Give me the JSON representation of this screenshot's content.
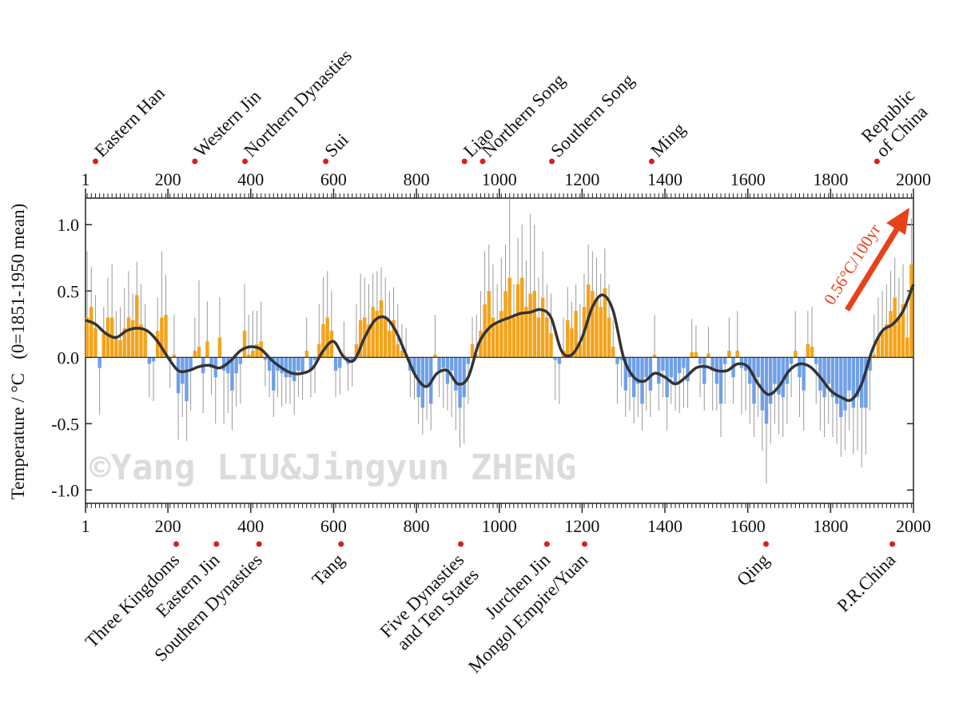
{
  "chart_data": {
    "type": "bar",
    "y_label": "Temperature / °C   (0=1851-1950 mean)",
    "watermark": "©Yang LIU&Jingyun ZHENG",
    "annotation": "0.56°C/100yr",
    "annotation_color": "#e8411a",
    "positive_color": "#f5a31a",
    "negative_color": "#6fa0e8",
    "error_color": "#999999",
    "line_color": "#333333",
    "grid": false,
    "xlim": [
      1,
      2000
    ],
    "xticks": [
      1,
      200,
      400,
      600,
      800,
      1000,
      1200,
      1400,
      1600,
      1800,
      2000
    ],
    "ylim": [
      -1.1,
      1.2
    ],
    "yticks": [
      {
        "value": 1,
        "label": "1.0"
      },
      {
        "value": 0.5,
        "label": "0.5"
      },
      {
        "value": 0,
        "label": "0.0"
      },
      {
        "value": -0.5,
        "label": "-0.5"
      },
      {
        "value": -1,
        "label": "-1.0"
      }
    ],
    "x": [
      5,
      15,
      25,
      35,
      45,
      55,
      65,
      75,
      85,
      95,
      105,
      115,
      125,
      135,
      145,
      155,
      165,
      175,
      185,
      195,
      205,
      215,
      225,
      235,
      245,
      255,
      265,
      275,
      285,
      295,
      305,
      315,
      325,
      335,
      345,
      355,
      365,
      375,
      385,
      395,
      405,
      415,
      425,
      435,
      445,
      455,
      465,
      475,
      485,
      495,
      505,
      515,
      525,
      535,
      545,
      555,
      565,
      575,
      585,
      595,
      605,
      615,
      625,
      635,
      645,
      655,
      665,
      675,
      685,
      695,
      705,
      715,
      725,
      735,
      745,
      755,
      765,
      775,
      785,
      795,
      805,
      815,
      825,
      835,
      845,
      855,
      865,
      875,
      885,
      895,
      905,
      915,
      925,
      935,
      945,
      955,
      965,
      975,
      985,
      995,
      1005,
      1015,
      1025,
      1035,
      1045,
      1055,
      1065,
      1075,
      1085,
      1095,
      1105,
      1115,
      1125,
      1135,
      1145,
      1155,
      1165,
      1175,
      1185,
      1195,
      1205,
      1215,
      1225,
      1235,
      1245,
      1255,
      1265,
      1275,
      1285,
      1295,
      1305,
      1315,
      1325,
      1335,
      1345,
      1355,
      1365,
      1375,
      1385,
      1395,
      1405,
      1415,
      1425,
      1435,
      1445,
      1455,
      1465,
      1475,
      1485,
      1495,
      1505,
      1515,
      1525,
      1535,
      1545,
      1555,
      1565,
      1575,
      1585,
      1595,
      1605,
      1615,
      1625,
      1635,
      1645,
      1655,
      1665,
      1675,
      1685,
      1695,
      1705,
      1715,
      1725,
      1735,
      1745,
      1755,
      1765,
      1775,
      1785,
      1795,
      1805,
      1815,
      1825,
      1835,
      1845,
      1855,
      1865,
      1875,
      1885,
      1895,
      1905,
      1915,
      1925,
      1935,
      1945,
      1955,
      1965,
      1975,
      1985,
      1995
    ],
    "values": [
      0.3,
      0.38,
      0.22,
      -0.08,
      0.18,
      0.3,
      0.3,
      0.15,
      0.13,
      0.22,
      0.3,
      0.28,
      0.47,
      0.25,
      0.2,
      -0.05,
      -0.03,
      0.2,
      0.3,
      0.32,
      -0.03,
      0.02,
      -0.27,
      -0.2,
      -0.33,
      -0.1,
      0.05,
      0.08,
      -0.12,
      0.12,
      -0.08,
      -0.15,
      0.15,
      -0.1,
      -0.12,
      -0.25,
      -0.12,
      -0.05,
      0.2,
      0.02,
      0.05,
      0.1,
      0.12,
      -0.02,
      -0.1,
      -0.25,
      -0.1,
      -0.12,
      -0.15,
      -0.15,
      -0.18,
      -0.1,
      -0.12,
      0.05,
      -0.1,
      -0.02,
      0.1,
      0.25,
      0.3,
      0.2,
      -0.1,
      -0.08,
      0.02,
      -0.05,
      -0.02,
      0.1,
      0.28,
      0.3,
      0.25,
      0.38,
      0.35,
      0.43,
      0.3,
      0.2,
      0.28,
      0.1,
      0.05,
      0.02,
      -0.1,
      -0.12,
      -0.3,
      -0.38,
      -0.22,
      -0.35,
      0.02,
      -0.1,
      -0.08,
      -0.2,
      -0.1,
      -0.25,
      -0.38,
      -0.3,
      -0.05,
      0.1,
      0.02,
      0.2,
      0.4,
      0.5,
      0.3,
      0.25,
      0.35,
      0.5,
      0.6,
      0.3,
      0.55,
      0.6,
      0.38,
      0.48,
      0.5,
      0.3,
      0.45,
      0.3,
      0.18,
      -0.02,
      -0.05,
      0.05,
      0.28,
      0.22,
      0.35,
      0.1,
      0.38,
      0.55,
      0.5,
      0.45,
      0.38,
      0.52,
      0.3,
      0.08,
      -0.05,
      -0.02,
      -0.25,
      -0.15,
      -0.3,
      -0.2,
      -0.35,
      -0.15,
      -0.25,
      0.02,
      -0.2,
      -0.1,
      -0.3,
      -0.15,
      -0.2,
      -0.12,
      -0.08,
      -0.18,
      0.04,
      0.04,
      -0.05,
      -0.2,
      0.03,
      -0.1,
      -0.2,
      -0.35,
      -0.05,
      0.05,
      -0.15,
      0.05,
      -0.08,
      -0.1,
      -0.2,
      -0.35,
      -0.15,
      -0.4,
      -0.5,
      -0.35,
      -0.2,
      -0.28,
      -0.3,
      -0.2,
      -0.05,
      0.05,
      -0.15,
      -0.25,
      0.1,
      0.08,
      -0.05,
      -0.25,
      -0.3,
      -0.2,
      -0.3,
      -0.35,
      -0.45,
      -0.4,
      -0.25,
      -0.38,
      -0.3,
      -0.38,
      -0.38,
      -0.1,
      0.02,
      0.15,
      0.2,
      0.25,
      0.35,
      0.45,
      0.3,
      0.4,
      0.15,
      0.7
    ],
    "errors": [
      0.5,
      0.3,
      0.25,
      0.35,
      0.2,
      0.3,
      0.4,
      0.2,
      0.25,
      0.3,
      0.35,
      0.2,
      0.25,
      0.3,
      0.2,
      0.25,
      0.3,
      0.25,
      0.5,
      0.3,
      0.2,
      0.3,
      0.35,
      0.25,
      0.3,
      0.3,
      0.25,
      0.5,
      0.3,
      0.3,
      0.2,
      0.35,
      0.3,
      0.4,
      0.3,
      0.3,
      0.25,
      0.3,
      0.35,
      0.3,
      0.3,
      0.25,
      0.3,
      0.2,
      0.2,
      0.2,
      0.2,
      0.25,
      0.2,
      0.2,
      0.25,
      0.2,
      0.2,
      0.25,
      0.2,
      0.25,
      0.3,
      0.35,
      0.35,
      0.3,
      0.2,
      0.2,
      0.25,
      0.2,
      0.2,
      0.3,
      0.35,
      0.3,
      0.3,
      0.25,
      0.3,
      0.25,
      0.3,
      0.3,
      0.25,
      0.3,
      0.2,
      0.2,
      0.2,
      0.2,
      0.2,
      0.2,
      0.25,
      0.2,
      0.3,
      0.2,
      0.3,
      0.2,
      0.35,
      0.3,
      0.3,
      0.35,
      0.3,
      0.2,
      0.3,
      0.3,
      0.4,
      0.35,
      0.4,
      0.3,
      0.4,
      0.35,
      0.6,
      0.25,
      0.35,
      0.4,
      0.35,
      0.6,
      0.5,
      0.3,
      0.35,
      0.25,
      0.3,
      0.3,
      0.3,
      0.25,
      0.25,
      0.2,
      0.2,
      0.3,
      0.25,
      0.3,
      0.3,
      0.3,
      0.25,
      0.3,
      0.25,
      0.2,
      0.3,
      0.2,
      0.2,
      0.25,
      0.2,
      0.25,
      0.2,
      0.25,
      0.2,
      0.3,
      0.2,
      0.2,
      0.25,
      0.2,
      0.2,
      0.3,
      0.3,
      0.2,
      0.25,
      0.2,
      0.25,
      0.2,
      0.2,
      0.3,
      0.2,
      0.25,
      0.3,
      0.25,
      0.2,
      0.3,
      0.35,
      0.3,
      0.3,
      0.25,
      0.3,
      0.3,
      0.45,
      0.3,
      0.3,
      0.3,
      0.3,
      0.3,
      0.25,
      0.3,
      0.3,
      0.3,
      0.25,
      0.3,
      0.3,
      0.3,
      0.3,
      0.3,
      0.3,
      0.3,
      0.3,
      0.3,
      0.3,
      0.35,
      0.4,
      0.45,
      0.35,
      0.3,
      0.3,
      0.3,
      0.3,
      0.3,
      0.3,
      0.3,
      0.3,
      0.3,
      0.3,
      0.35
    ],
    "smooth": {
      "x": [
        1,
        25,
        50,
        75,
        100,
        125,
        150,
        175,
        200,
        225,
        250,
        275,
        300,
        325,
        350,
        375,
        400,
        425,
        450,
        475,
        500,
        525,
        550,
        575,
        600,
        625,
        650,
        675,
        700,
        725,
        750,
        775,
        800,
        825,
        850,
        875,
        900,
        925,
        950,
        975,
        1000,
        1025,
        1050,
        1075,
        1100,
        1125,
        1150,
        1175,
        1200,
        1225,
        1250,
        1275,
        1300,
        1325,
        1350,
        1375,
        1400,
        1425,
        1450,
        1475,
        1500,
        1525,
        1550,
        1575,
        1600,
        1625,
        1650,
        1675,
        1700,
        1725,
        1750,
        1775,
        1800,
        1825,
        1850,
        1875,
        1900,
        1925,
        1950,
        1975,
        2000
      ],
      "values": [
        0.28,
        0.25,
        0.18,
        0.15,
        0.2,
        0.22,
        0.2,
        0.12,
        0.0,
        -0.1,
        -0.1,
        -0.07,
        -0.06,
        -0.08,
        -0.03,
        0.05,
        0.08,
        0.06,
        -0.02,
        -0.08,
        -0.12,
        -0.12,
        -0.08,
        0.05,
        0.12,
        0.0,
        -0.02,
        0.15,
        0.28,
        0.3,
        0.2,
        0.02,
        -0.15,
        -0.22,
        -0.12,
        -0.1,
        -0.2,
        -0.15,
        0.1,
        0.22,
        0.27,
        0.3,
        0.33,
        0.34,
        0.36,
        0.3,
        0.05,
        0.02,
        0.15,
        0.38,
        0.47,
        0.35,
        0.0,
        -0.15,
        -0.18,
        -0.12,
        -0.15,
        -0.2,
        -0.15,
        -0.08,
        -0.07,
        -0.1,
        -0.1,
        -0.05,
        -0.07,
        -0.2,
        -0.28,
        -0.22,
        -0.1,
        -0.05,
        -0.07,
        -0.15,
        -0.25,
        -0.3,
        -0.32,
        -0.2,
        0.05,
        0.2,
        0.25,
        0.35,
        0.55
      ]
    },
    "top_periods": [
      {
        "lines": [
          "Eastern Han"
        ],
        "year": 25
      },
      {
        "lines": [
          "Western Jin"
        ],
        "year": 265
      },
      {
        "lines": [
          "Northern Dynasties"
        ],
        "year": 386
      },
      {
        "lines": [
          "Sui"
        ],
        "year": 581
      },
      {
        "lines": [
          "Liao"
        ],
        "year": 916
      },
      {
        "lines": [
          "Northern Song"
        ],
        "year": 960
      },
      {
        "lines": [
          "Southern Song"
        ],
        "year": 1127
      },
      {
        "lines": [
          "Ming"
        ],
        "year": 1368
      },
      {
        "lines": [
          "Republic",
          "of China"
        ],
        "year": 1912
      }
    ],
    "bottom_periods": [
      {
        "lines": [
          "Three Kingdoms"
        ],
        "year": 220
      },
      {
        "lines": [
          "Eastern Jin"
        ],
        "year": 317
      },
      {
        "lines": [
          "Southern Dynasties"
        ],
        "year": 420
      },
      {
        "lines": [
          "Tang"
        ],
        "year": 618
      },
      {
        "lines": [
          "Five Dynasties",
          "and Ten States"
        ],
        "year": 907
      },
      {
        "lines": [
          "Jurchen Jin"
        ],
        "year": 1115
      },
      {
        "lines": [
          "Mongol Empire/Yuan"
        ],
        "year": 1206
      },
      {
        "lines": [
          "Qing"
        ],
        "year": 1644
      },
      {
        "lines": [
          "P.R.China"
        ],
        "year": 1949
      }
    ]
  }
}
